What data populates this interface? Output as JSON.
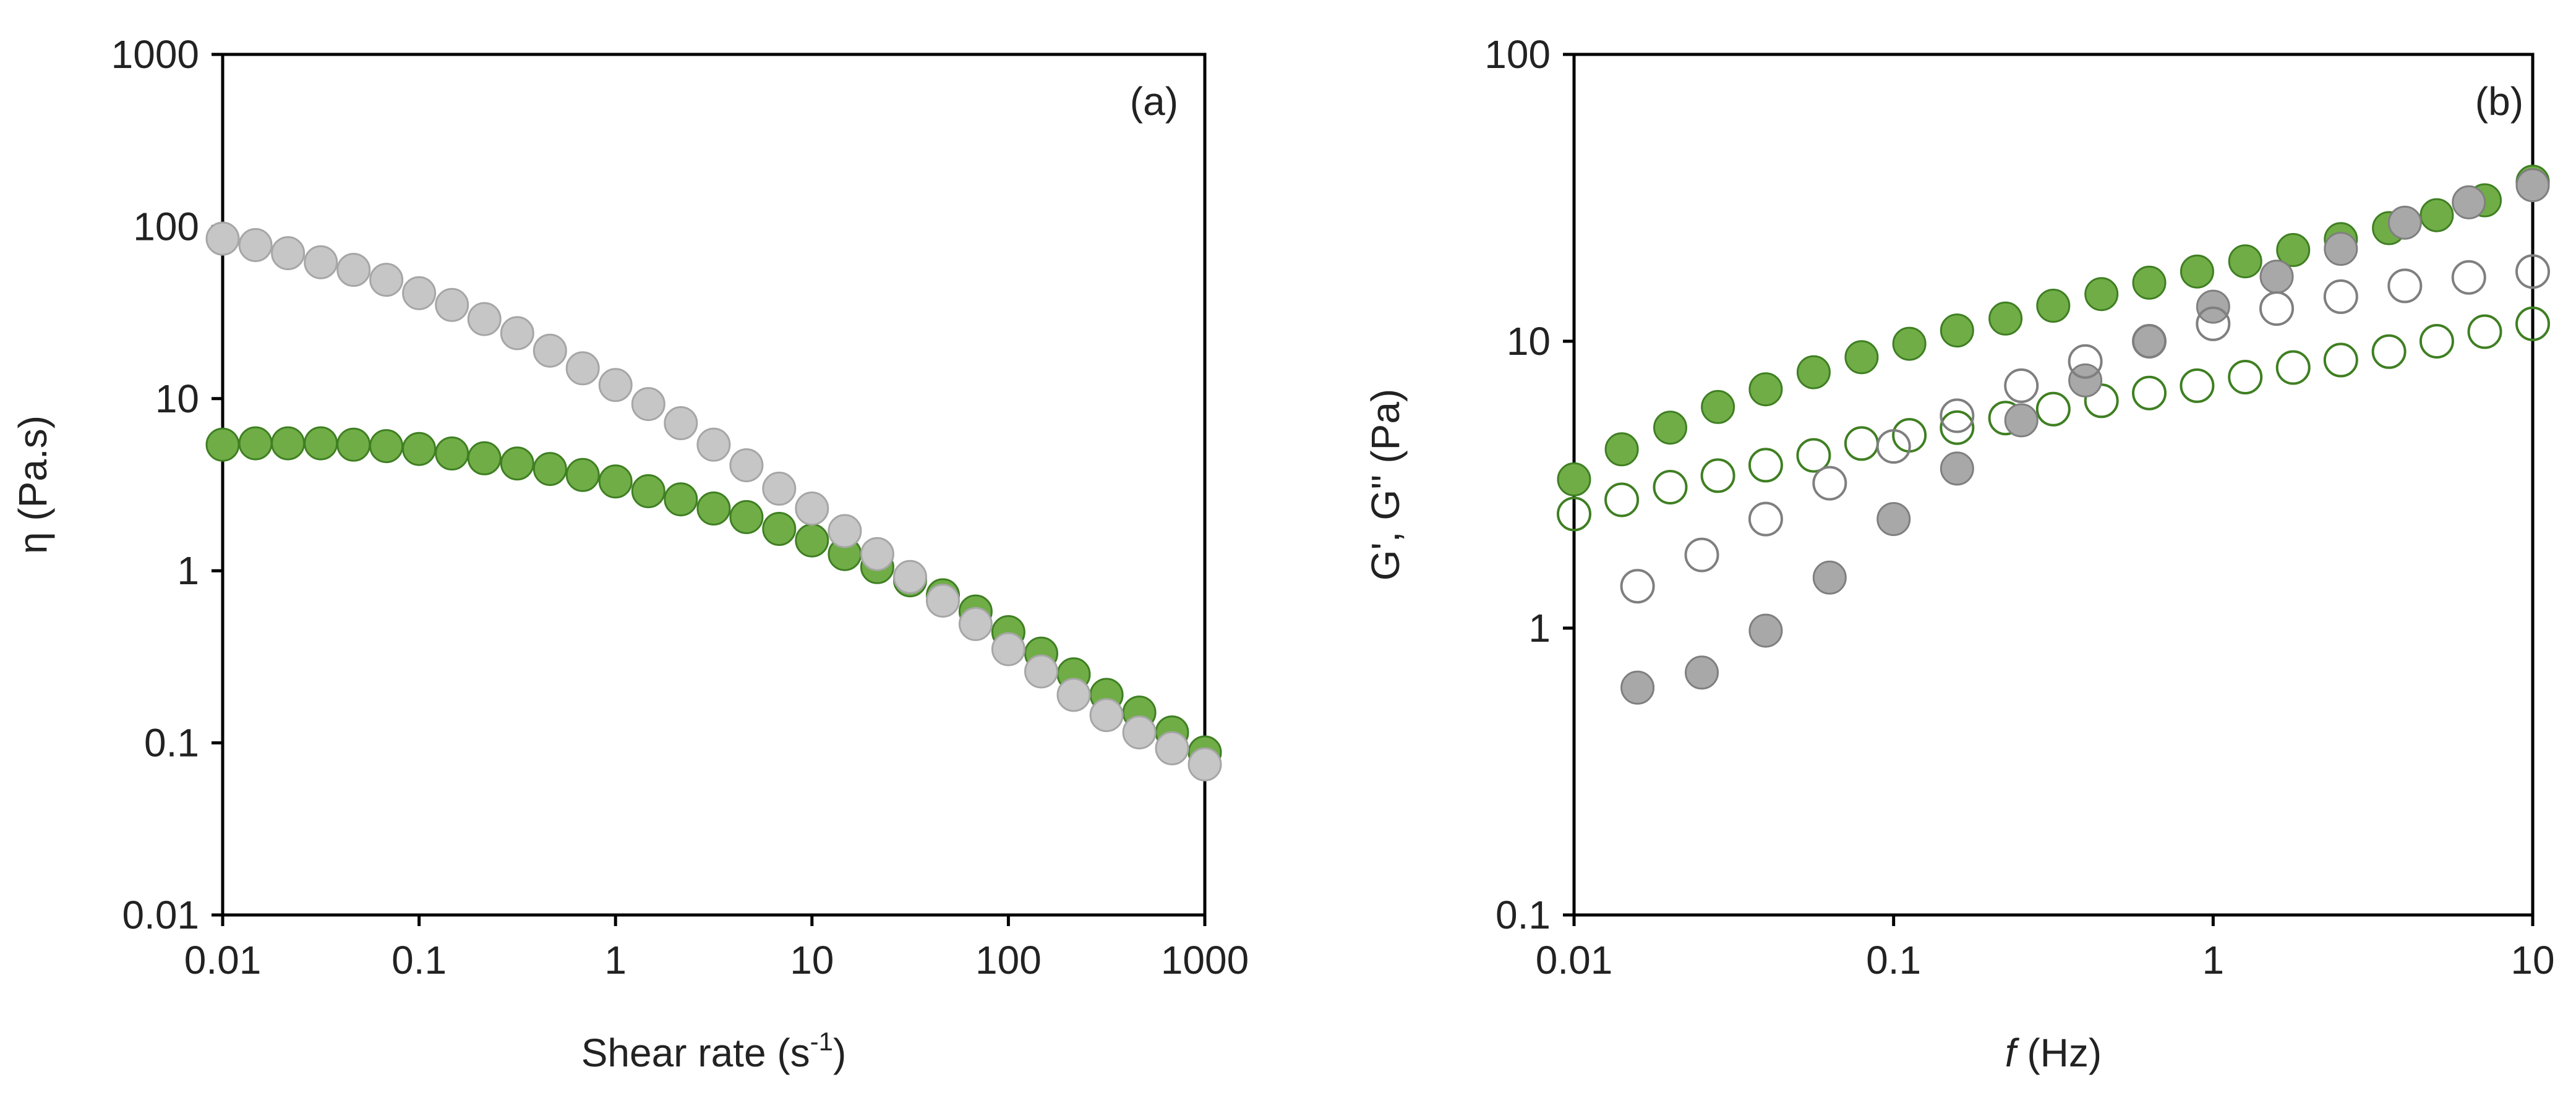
{
  "colors": {
    "green_fill": "#70AD47",
    "green_stroke": "#3F7F22",
    "grey_fill": "#C6C6C6",
    "grey_dark_fill": "#A8A8A8",
    "grey_stroke": "#7F7F7F",
    "axis": "#000000"
  },
  "chart_data": [
    {
      "panel": "(a)",
      "type": "scatter",
      "xscale": "log",
      "yscale": "log",
      "xlabel_main": "Shear rate (s",
      "xlabel_sup": "-1",
      "xlabel_end": ")",
      "ylabel": "η (Pa.s)",
      "xlim": [
        0.01,
        1000
      ],
      "ylim": [
        0.01,
        1000
      ],
      "xticks": [
        0.01,
        0.1,
        1,
        10,
        100,
        1000
      ],
      "xtick_labels": [
        "0.01",
        "0.1",
        "1",
        "10",
        "100",
        "1000"
      ],
      "yticks": [
        0.01,
        0.1,
        1,
        10,
        100,
        1000
      ],
      "ytick_labels": [
        "0.01",
        "0.1",
        "1",
        "10",
        "100",
        "1000"
      ],
      "grid": false,
      "legend": false,
      "series": [
        {
          "marker": "filled",
          "color": "green",
          "x": [
            0.01,
            0.0147,
            0.0215,
            0.0316,
            0.0464,
            0.0681,
            0.1,
            0.147,
            0.215,
            0.316,
            0.464,
            0.681,
            1,
            1.47,
            2.15,
            3.16,
            4.64,
            6.81,
            10,
            14.7,
            21.5,
            31.6,
            46.4,
            68.1,
            100,
            147,
            215,
            316,
            464,
            681,
            1000
          ],
          "y": [
            5.4,
            5.5,
            5.5,
            5.5,
            5.4,
            5.3,
            5.1,
            4.8,
            4.5,
            4.2,
            3.9,
            3.6,
            3.3,
            2.9,
            2.6,
            2.3,
            2.05,
            1.75,
            1.5,
            1.25,
            1.05,
            0.88,
            0.72,
            0.58,
            0.44,
            0.33,
            0.25,
            0.19,
            0.15,
            0.115,
            0.088
          ]
        },
        {
          "marker": "filled",
          "color": "grey",
          "x": [
            0.01,
            0.0147,
            0.0215,
            0.0316,
            0.0464,
            0.0681,
            0.1,
            0.147,
            0.215,
            0.316,
            0.464,
            0.681,
            1,
            1.47,
            2.15,
            3.16,
            4.64,
            6.81,
            10,
            14.7,
            21.5,
            31.6,
            46.4,
            68.1,
            100,
            147,
            215,
            316,
            464,
            681,
            1000
          ],
          "y": [
            85,
            78,
            70,
            62,
            56,
            49,
            41,
            35,
            29,
            24,
            19,
            15,
            12,
            9.3,
            7.2,
            5.4,
            4.1,
            3.0,
            2.3,
            1.7,
            1.25,
            0.92,
            0.67,
            0.49,
            0.35,
            0.26,
            0.19,
            0.145,
            0.115,
            0.093,
            0.075
          ]
        }
      ]
    },
    {
      "panel": "(b)",
      "type": "scatter",
      "xscale": "log",
      "yscale": "log",
      "xlabel_main": "f",
      "xlabel_end": " (Hz)",
      "ylabel": "G', G'' (Pa)",
      "xlim": [
        0.01,
        10
      ],
      "ylim": [
        0.1,
        100
      ],
      "xticks": [
        0.01,
        0.1,
        1,
        10
      ],
      "xtick_labels": [
        "0.01",
        "0.1",
        "1",
        "10"
      ],
      "yticks": [
        0.1,
        1,
        10,
        100
      ],
      "ytick_labels": [
        "0.1",
        "1",
        "10",
        "100"
      ],
      "grid": false,
      "legend": false,
      "series": [
        {
          "marker": "filled",
          "color": "green",
          "x": [
            0.01,
            0.0141,
            0.02,
            0.0282,
            0.0398,
            0.0562,
            0.0794,
            0.112,
            0.158,
            0.224,
            0.316,
            0.447,
            0.631,
            0.891,
            1.26,
            1.78,
            2.51,
            3.55,
            5.01,
            7.08,
            10
          ],
          "y": [
            3.3,
            4.2,
            5.0,
            5.9,
            6.8,
            7.8,
            8.8,
            9.8,
            10.9,
            12.0,
            13.3,
            14.6,
            16.0,
            17.5,
            19.0,
            20.8,
            22.7,
            24.8,
            27.5,
            31.0,
            36.0
          ]
        },
        {
          "marker": "open",
          "color": "green",
          "x": [
            0.01,
            0.0141,
            0.02,
            0.0282,
            0.0398,
            0.0562,
            0.0794,
            0.112,
            0.158,
            0.224,
            0.316,
            0.447,
            0.631,
            0.891,
            1.26,
            1.78,
            2.51,
            3.55,
            5.01,
            7.08,
            10
          ],
          "y": [
            2.5,
            2.8,
            3.1,
            3.4,
            3.7,
            4.0,
            4.4,
            4.7,
            5.0,
            5.4,
            5.8,
            6.2,
            6.6,
            7.0,
            7.5,
            8.1,
            8.6,
            9.2,
            10.0,
            10.8,
            11.5
          ]
        },
        {
          "marker": "filled",
          "color": "grey",
          "x": [
            0.0158,
            0.0251,
            0.0398,
            0.0631,
            0.1,
            0.158,
            0.251,
            0.398,
            0.631,
            1.0,
            1.58,
            2.51,
            3.98,
            6.31,
            10
          ],
          "y": [
            0.62,
            0.7,
            0.98,
            1.5,
            2.4,
            3.6,
            5.3,
            7.3,
            10.0,
            13.2,
            16.8,
            21.0,
            25.9,
            30.5,
            35.0
          ]
        },
        {
          "marker": "open",
          "color": "grey",
          "x": [
            0.0158,
            0.0251,
            0.0398,
            0.0631,
            0.1,
            0.158,
            0.251,
            0.398,
            0.631,
            1.0,
            1.58,
            2.51,
            3.98,
            6.31,
            10
          ],
          "y": [
            1.4,
            1.8,
            2.4,
            3.2,
            4.3,
            5.5,
            7.0,
            8.5,
            10.0,
            11.5,
            13.0,
            14.3,
            15.6,
            16.7,
            17.5
          ]
        }
      ]
    }
  ]
}
